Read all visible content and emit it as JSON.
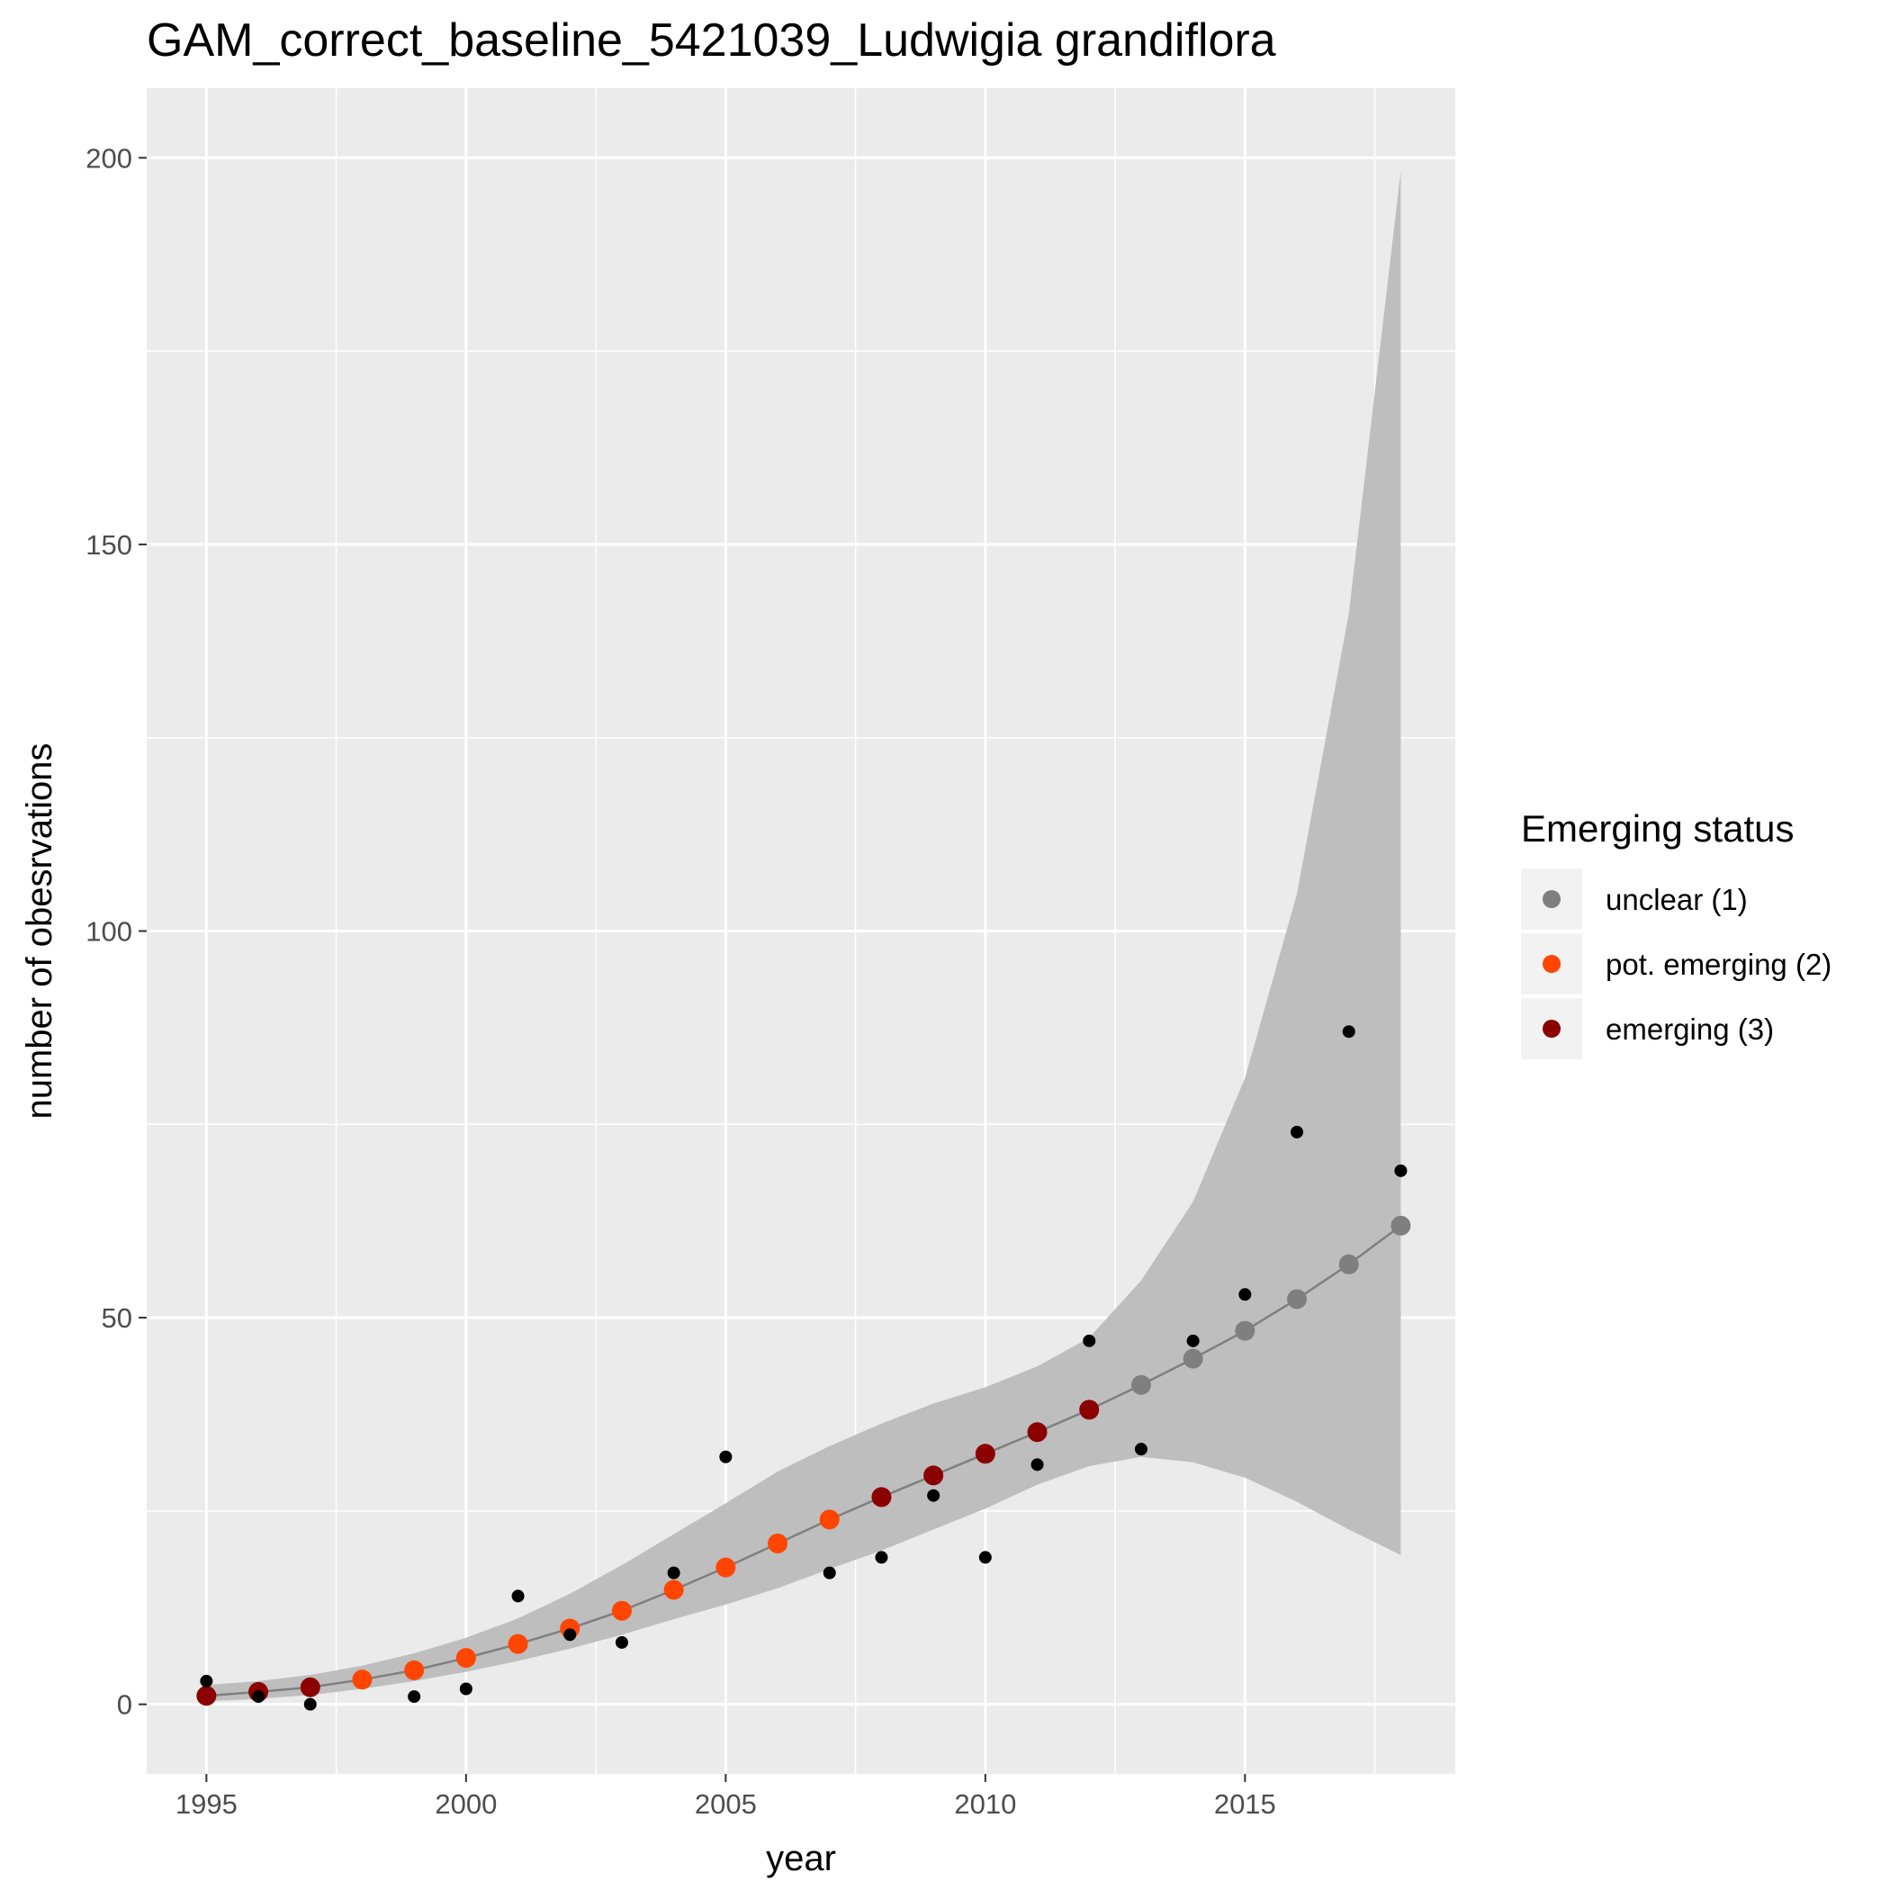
{
  "chart_data": {
    "type": "scatter",
    "title": "GAM_correct_baseline_5421039_Ludwigia grandiflora",
    "xlabel": "year",
    "ylabel": "number of obesrvations",
    "xlim": [
      1993.85,
      2019.05
    ],
    "ylim": [
      -9,
      209
    ],
    "x_ticks": [
      1995,
      2000,
      2005,
      2010,
      2015
    ],
    "x_tick_labels": [
      "1995",
      "2000",
      "2005",
      "2010",
      "2015"
    ],
    "y_ticks": [
      0,
      50,
      100,
      150,
      200
    ],
    "y_tick_labels": [
      "0",
      "50",
      "100",
      "150",
      "200"
    ],
    "x_minor_gridlines": [
      1997.5,
      2002.5,
      2007.5,
      2012.5,
      2017.5
    ],
    "y_minor_gridlines": [
      25,
      75,
      125,
      175
    ],
    "grid": true,
    "panel_background": "#ebebeb",
    "observed": {
      "color": "#000000",
      "x": [
        1995,
        1996,
        1997,
        1999,
        2000,
        2001,
        2002,
        2003,
        2004,
        2005,
        2007,
        2008,
        2009,
        2010,
        2011,
        2012,
        2013,
        2014,
        2015,
        2016,
        2017,
        2018
      ],
      "y": [
        3,
        1,
        0,
        1,
        2,
        14,
        9,
        8,
        17,
        32,
        17,
        19,
        27,
        19,
        31,
        47,
        33,
        47,
        53,
        74,
        87,
        69
      ]
    },
    "fit": {
      "line_color": "#7f7f7f",
      "band_color": "#bebebe",
      "x": [
        1995,
        1996,
        1997,
        1998,
        1999,
        2000,
        2001,
        2002,
        2003,
        2004,
        2005,
        2006,
        2007,
        2008,
        2009,
        2010,
        2011,
        2012,
        2013,
        2014,
        2015,
        2016,
        2017,
        2018
      ],
      "y": [
        1.1,
        1.6,
        2.2,
        3.2,
        4.4,
        6.0,
        7.8,
        9.8,
        12.1,
        14.8,
        17.7,
        20.8,
        23.9,
        26.8,
        29.6,
        32.4,
        35.2,
        38.1,
        41.3,
        44.7,
        48.3,
        52.4,
        56.9,
        61.9
      ],
      "lower": [
        0.4,
        0.7,
        1.2,
        2.0,
        3.0,
        4.2,
        5.6,
        7.2,
        9.0,
        11.0,
        12.9,
        15.0,
        17.5,
        19.9,
        22.6,
        25.3,
        28.4,
        30.8,
        32.0,
        31.3,
        29.3,
        26.2,
        22.6,
        19.3
      ],
      "upper": [
        2.5,
        3.0,
        3.8,
        5.0,
        6.6,
        8.6,
        11.1,
        14.3,
        18.0,
        22.0,
        26.0,
        30.1,
        33.4,
        36.3,
        38.9,
        41.0,
        43.7,
        47.4,
        54.8,
        65.0,
        81.0,
        104.8,
        141.1,
        198.3
      ],
      "status": [
        3,
        3,
        3,
        2,
        2,
        2,
        2,
        2,
        2,
        2,
        2,
        2,
        2,
        3,
        3,
        3,
        3,
        3,
        1,
        1,
        1,
        1,
        1,
        1
      ]
    },
    "legend": {
      "title": "Emerging status",
      "position": "right",
      "entries": [
        {
          "label": "unclear (1)",
          "status": 1,
          "color": "#7f7f7f"
        },
        {
          "label": "pot. emerging (2)",
          "status": 2,
          "color": "#ff4500"
        },
        {
          "label": "emerging (3)",
          "status": 3,
          "color": "#8b0000"
        }
      ]
    }
  }
}
